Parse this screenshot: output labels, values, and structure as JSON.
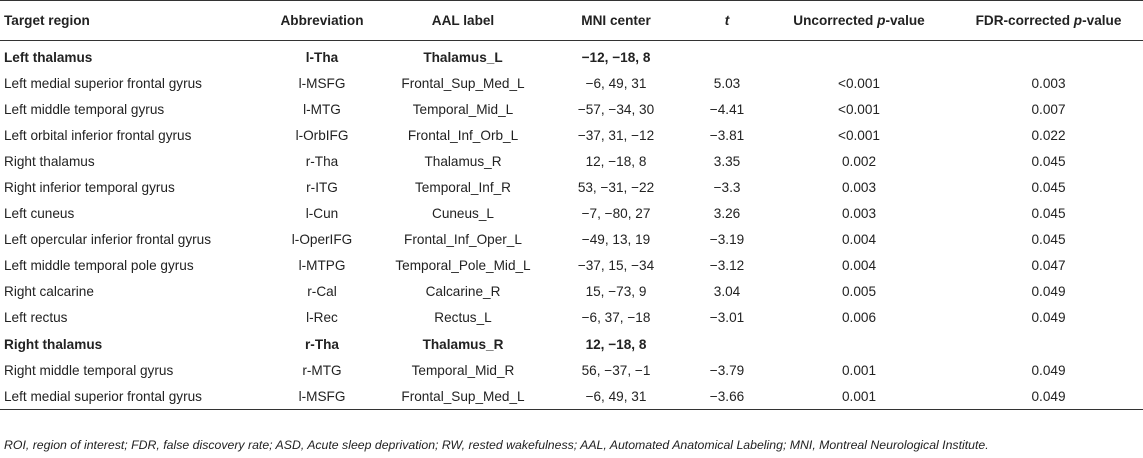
{
  "table": {
    "headers": {
      "target": "Target region",
      "abbr": "Abbreviation",
      "aal": "AAL label",
      "mni": "MNI center",
      "t": "t",
      "unc_prefix": "Uncorrected ",
      "fdr_prefix": "FDR-corrected ",
      "p_word": "p",
      "p_suffix": "-value"
    },
    "rows": [
      {
        "region": "Left thalamus",
        "abbr": "l-Tha",
        "aal": "Thalamus_L",
        "mni": "−12, −18, 8",
        "t": "",
        "p_unc": "",
        "p_fdr": "",
        "group": true
      },
      {
        "region": "Left medial superior frontal gyrus",
        "abbr": "l-MSFG",
        "aal": "Frontal_Sup_Med_L",
        "mni": "−6, 49, 31",
        "t": "5.03",
        "p_unc": "<0.001",
        "p_fdr": "0.003"
      },
      {
        "region": "Left middle temporal gyrus",
        "abbr": "l-MTG",
        "aal": "Temporal_Mid_L",
        "mni": "−57, −34, 30",
        "t": "−4.41",
        "p_unc": "<0.001",
        "p_fdr": "0.007"
      },
      {
        "region": "Left orbital inferior frontal gyrus",
        "abbr": "l-OrbIFG",
        "aal": "Frontal_Inf_Orb_L",
        "mni": "−37, 31, −12",
        "t": "−3.81",
        "p_unc": "<0.001",
        "p_fdr": "0.022"
      },
      {
        "region": "Right thalamus",
        "abbr": "r-Tha",
        "aal": "Thalamus_R",
        "mni": "12, −18, 8",
        "t": "3.35",
        "p_unc": "0.002",
        "p_fdr": "0.045"
      },
      {
        "region": "Right inferior temporal gyrus",
        "abbr": "r-ITG",
        "aal": "Temporal_Inf_R",
        "mni": "53, −31, −22",
        "t": "−3.3",
        "p_unc": "0.003",
        "p_fdr": "0.045"
      },
      {
        "region": "Left cuneus",
        "abbr": "l-Cun",
        "aal": "Cuneus_L",
        "mni": "−7, −80, 27",
        "t": "3.26",
        "p_unc": "0.003",
        "p_fdr": "0.045"
      },
      {
        "region": "Left opercular inferior frontal gyrus",
        "abbr": "l-OperIFG",
        "aal": "Frontal_Inf_Oper_L",
        "mni": "−49, 13, 19",
        "t": "−3.19",
        "p_unc": "0.004",
        "p_fdr": "0.045"
      },
      {
        "region": "Left middle temporal pole gyrus",
        "abbr": "l-MTPG",
        "aal": "Temporal_Pole_Mid_L",
        "mni": "−37, 15, −34",
        "t": "−3.12",
        "p_unc": "0.004",
        "p_fdr": "0.047"
      },
      {
        "region": "Right calcarine",
        "abbr": "r-Cal",
        "aal": "Calcarine_R",
        "mni": "15, −73, 9",
        "t": "3.04",
        "p_unc": "0.005",
        "p_fdr": "0.049"
      },
      {
        "region": "Left rectus",
        "abbr": "l-Rec",
        "aal": "Rectus_L",
        "mni": "−6, 37, −18",
        "t": "−3.01",
        "p_unc": "0.006",
        "p_fdr": "0.049"
      },
      {
        "region": "Right thalamus",
        "abbr": "r-Tha",
        "aal": "Thalamus_R",
        "mni": "12, −18, 8",
        "t": "",
        "p_unc": "",
        "p_fdr": "",
        "group": true
      },
      {
        "region": "Right middle temporal gyrus",
        "abbr": "r-MTG",
        "aal": "Temporal_Mid_R",
        "mni": "56, −37, −1",
        "t": "−3.79",
        "p_unc": "0.001",
        "p_fdr": "0.049"
      },
      {
        "region": "Left medial superior frontal gyrus",
        "abbr": "l-MSFG",
        "aal": "Frontal_Sup_Med_L",
        "mni": "−6, 49, 31",
        "t": "−3.66",
        "p_unc": "0.001",
        "p_fdr": "0.049"
      }
    ]
  },
  "footnote": "ROI, region of interest; FDR, false discovery rate; ASD, Acute sleep deprivation; RW, rested wakefulness; AAL, Automated Anatomical Labeling; MNI, Montreal Neurological Institute."
}
